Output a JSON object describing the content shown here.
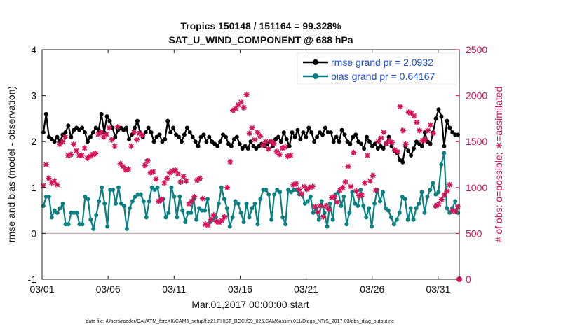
{
  "colors": {
    "rmse": "#000000",
    "bias": "#0b8080",
    "obs": "#d4145a",
    "legend_text": "#1f4fd6",
    "zero": "#c8b4b4",
    "axis": "#222222"
  },
  "chart_data": {
    "type": "line",
    "title_line1": "Tropics 150148 / 151164 = 99.328%",
    "title_line2": "SAT_U_WIND_COMPONENT @ 688 hPa",
    "ylabel": "rmse and bias (model - observation)",
    "y2label": "# of obs: o=possible; ∗=assimilated",
    "xlabel": "Mar.01,2017 00:00:00 start",
    "footer": "data file: /Users/raeder/DAI/ATM_forcXX/CAM6_setup/f.e21.FHIST_BGC.f09_025.CAM6assim.011/Diags_NTrS_2017-03/obs_diag_output.nc",
    "xlim": [
      0,
      31.6
    ],
    "ylim": [
      -1,
      4
    ],
    "y2lim": [
      0,
      2500
    ],
    "xticks": [
      0,
      5,
      10,
      15,
      20,
      25,
      30
    ],
    "xtick_labels": [
      "03/01",
      "03/06",
      "03/11",
      "03/16",
      "03/21",
      "03/26",
      "03/31"
    ],
    "yticks": [
      -1,
      0,
      1,
      2,
      3,
      4
    ],
    "ytick_labels": [
      "-1",
      "0",
      "1",
      "2",
      "3",
      "4"
    ],
    "y2ticks": [
      0,
      500,
      1000,
      1500,
      2000,
      2500
    ],
    "y2tick_labels": [
      "0",
      "500",
      "1000",
      "1500",
      "2000",
      "2500"
    ],
    "legend": [
      {
        "name": "rmse",
        "label": "rmse grand pr = 2.0932"
      },
      {
        "name": "bias",
        "label": "bias grand pr = 0.64167"
      }
    ],
    "series": [
      {
        "name": "rmse",
        "axis": "left",
        "values": [
          2.2,
          2.6,
          2.1,
          2.05,
          2.0,
          2.1,
          2.0,
          2.15,
          2.2,
          2.35,
          2.1,
          2.25,
          2.3,
          2.25,
          2.3,
          2.2,
          2.0,
          2.1,
          2.2,
          2.3,
          2.25,
          2.6,
          2.2,
          2.55,
          2.45,
          2.3,
          2.1,
          2.25,
          2.3,
          2.25,
          2.3,
          2.05,
          2.15,
          2.3,
          2.45,
          2.2,
          2.1,
          2.2,
          2.3,
          2.2,
          2.0,
          2.1,
          2.15,
          2.0,
          2.05,
          2.45,
          2.2,
          2.3,
          2.15,
          2.1,
          2.0,
          2.15,
          2.3,
          2.2,
          2.1,
          2.0,
          1.9,
          2.1,
          2.15,
          2.0,
          2.1,
          2.0,
          1.95,
          1.9,
          2.0,
          2.15,
          2.1,
          1.95,
          1.9,
          2.05,
          2.1,
          1.95,
          1.85,
          1.9,
          1.85,
          2.0,
          1.9,
          1.85,
          1.9,
          1.95,
          1.9,
          1.95,
          2.0,
          1.9,
          2.05,
          2.1,
          2.0,
          2.2,
          2.05,
          1.9,
          2.2,
          2.1,
          2.25,
          2.05,
          2.2,
          2.1,
          2.3,
          2.2,
          2.0,
          2.1,
          2.2,
          2.15,
          2.3,
          2.2,
          2.2,
          2.0,
          2.1,
          2.0,
          2.25,
          2.15,
          2.0,
          1.95,
          2.1,
          2.15,
          2.0,
          1.95,
          1.85,
          2.1,
          2.0,
          1.9,
          1.95,
          1.85,
          1.9,
          1.85,
          1.95,
          2.1,
          1.9,
          1.8,
          1.75,
          1.6,
          1.55,
          1.9,
          1.8,
          1.7,
          1.85,
          2.0,
          1.95,
          1.9,
          2.2,
          2.0,
          1.95,
          2.2,
          2.5,
          2.7,
          2.55,
          1.9,
          2.45,
          2.3,
          2.2,
          2.15,
          2.15
        ]
      },
      {
        "name": "bias",
        "axis": "left",
        "values": [
          0.6,
          0.8,
          0.8,
          0.35,
          0.5,
          0.45,
          0.55,
          0.65,
          0.2,
          0.2,
          0.45,
          0.45,
          0.45,
          0.2,
          0.2,
          0.8,
          0.75,
          0.3,
          0.1,
          0.4,
          0.7,
          1.0,
          0.65,
          0.15,
          0.95,
          0.95,
          0.65,
          1.0,
          0.65,
          0.6,
          0.1,
          0.55,
          0.7,
          0.8,
          0.85,
          0.85,
          0.7,
          0.35,
          0.7,
          1.0,
          0.95,
          1.0,
          0.7,
          0.75,
          0.35,
          0.45,
          1.0,
          0.8,
          0.35,
          0.8,
          0.5,
          0.25,
          0.45,
          0.45,
          0.75,
          0.3,
          0.55,
          0.5,
          0.5,
          0.75,
          0.25,
          0.3,
          0.35,
          0.65,
          1.0,
          0.75,
          0.55,
          0.15,
          0.35,
          0.7,
          0.65,
          0.45,
          0.25,
          0.65,
          0.35,
          0.55,
          0.65,
          0.2,
          0.75,
          0.95,
          0.95,
          0.85,
          0.3,
          0.85,
          0.95,
          0.9,
          0.35,
          0.2,
          0.95,
          0.9,
          0.95,
          0.95,
          0.85,
          0.85,
          0.65,
          0.7,
          0.8,
          0.45,
          0.55,
          0.3,
          0.7,
          0.45,
          0.15,
          0.65,
          0.3,
          0.85,
          0.9,
          0.6,
          0.8,
          0.2,
          0.45,
          0.9,
          0.65,
          0.6,
          0.95,
          0.6,
          0.35,
          0.55,
          0.15,
          0.65,
          0.95,
          0.7,
          0.9,
          0.55,
          0.5,
          0.35,
          0.2,
          0.3,
          0.45,
          0.8,
          0.75,
          0.3,
          0.55,
          0.3,
          0.55,
          0.65,
          0.9,
          0.45,
          0.8,
          0.95,
          1.1,
          0.85,
          0.9,
          1.5,
          1.75,
          0.55,
          0.45,
          0.55,
          0.7,
          0.45
        ]
      },
      {
        "name": "obs_possible",
        "axis": "right",
        "marker": "o",
        "values": [
          0
        ]
      },
      {
        "name": "obs_assimilated",
        "axis": "right",
        "marker": "*",
        "values": [
          1020,
          1250,
          1100,
          1050,
          1070,
          1030,
          1470,
          1500,
          1550,
          1350,
          1360,
          1470,
          1400,
          1350,
          1350,
          1430,
          1320,
          1340,
          1360,
          1370,
          1580,
          1600,
          1550,
          1580,
          1650,
          1520,
          1450,
          1660,
          1260,
          1230,
          1190,
          1200,
          1450,
          1600,
          1520,
          1590,
          1570,
          1240,
          1290,
          1160,
          1170,
          1090,
          850,
          870,
          1050,
          1100,
          1160,
          1180,
          1190,
          1150,
          1060,
          1120,
          1070,
          820,
          850,
          900,
          1080,
          1100,
          880,
          600,
          590,
          650,
          700,
          630,
          620,
          640,
          680,
          1000,
          1280,
          1840,
          1860,
          1900,
          1930,
          1870,
          2010,
          1590,
          1650,
          1520,
          1600,
          1560,
          1460,
          1500,
          1420,
          1500,
          1480,
          1390,
          1360,
          1430,
          1440,
          1340,
          1350,
          1030,
          1040,
          980,
          930,
          1010,
          980,
          1000,
          1010,
          790,
          730,
          800,
          680,
          800,
          760,
          890,
          900,
          840,
          970,
          1000,
          1060,
          1230,
          1010,
          1380,
          960,
          910,
          920,
          1050,
          1350,
          1070,
          1130,
          970,
          1500,
          1540,
          1600,
          1480,
          1510,
          1490,
          1410,
          1390,
          1880,
          1620,
          1470,
          1820,
          1810,
          1780,
          1710,
          1620,
          1510,
          1520,
          1620,
          1680,
          1590,
          800,
          820,
          870,
          920,
          960,
          1030,
          750,
          740,
          790
        ]
      }
    ]
  }
}
